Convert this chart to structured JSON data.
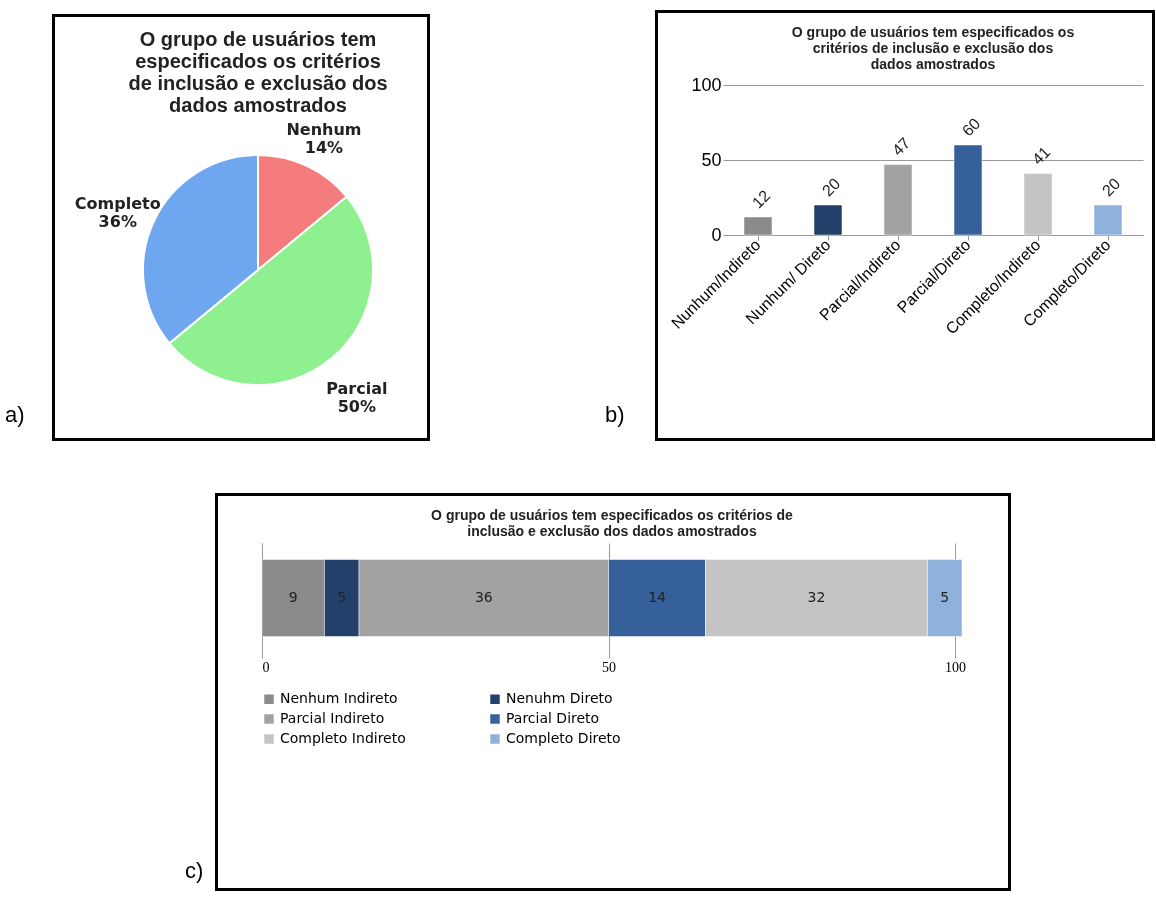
{
  "chart_data": [
    {
      "type": "pie",
      "title": "O grupo de usuários tem especificados os critérios de inclusão e exclusão dos dados amostrados",
      "categories": [
        "Nenhum",
        "Parcial",
        "Completo"
      ],
      "values": [
        14,
        50,
        36
      ],
      "value_labels": [
        "14%",
        "50%",
        "36%"
      ],
      "colors": [
        "#f47c7c",
        "#8ef08e",
        "#6ea6f0"
      ],
      "annotations": [
        "a)"
      ]
    },
    {
      "type": "bar",
      "title": "O grupo de usuários tem especificados os critérios de inclusão e exclusão dos dados amostrados",
      "categories": [
        "Nunhum/Indireto",
        "Nunhum/ Direto",
        "Parcial/Indireto",
        "Parcial/Direto",
        "Completo/Indireto",
        "Completo/Direto"
      ],
      "values": [
        12,
        20,
        47,
        60,
        41,
        20
      ],
      "colors": [
        "#8a8a8a",
        "#22406a",
        "#a2a2a2",
        "#35609a",
        "#c4c4c4",
        "#8fb2dc"
      ],
      "ylim": [
        0,
        100
      ],
      "yticks": [
        0,
        50,
        100
      ],
      "grid": "y",
      "data_labels": true,
      "annotations": [
        "b)"
      ]
    },
    {
      "type": "bar",
      "title": "O grupo de usuários tem especificados os critérios de inclusão e exclusão dos dados amostrados",
      "orientation": "horizontal",
      "stacked": true,
      "categories": [
        null
      ],
      "series": [
        {
          "name": "Nenhum Indireto",
          "color": "#8a8a8a",
          "values": [
            9
          ]
        },
        {
          "name": "Nenuhm Direto",
          "color": "#22406a",
          "values": [
            5
          ]
        },
        {
          "name": "Parcial Indireto",
          "color": "#a2a2a2",
          "values": [
            36
          ]
        },
        {
          "name": "Parcial Direto",
          "color": "#35609a",
          "values": [
            14
          ]
        },
        {
          "name": "Completo Indireto",
          "color": "#c4c4c4",
          "values": [
            32
          ]
        },
        {
          "name": "Completo Direto",
          "color": "#8fb2dc",
          "values": [
            5
          ]
        }
      ],
      "xlim": [
        0,
        101
      ],
      "xticks": [
        0,
        50,
        100
      ],
      "grid": "x",
      "legend": "bottom",
      "data_labels": true,
      "annotations": [
        "c)"
      ]
    }
  ]
}
